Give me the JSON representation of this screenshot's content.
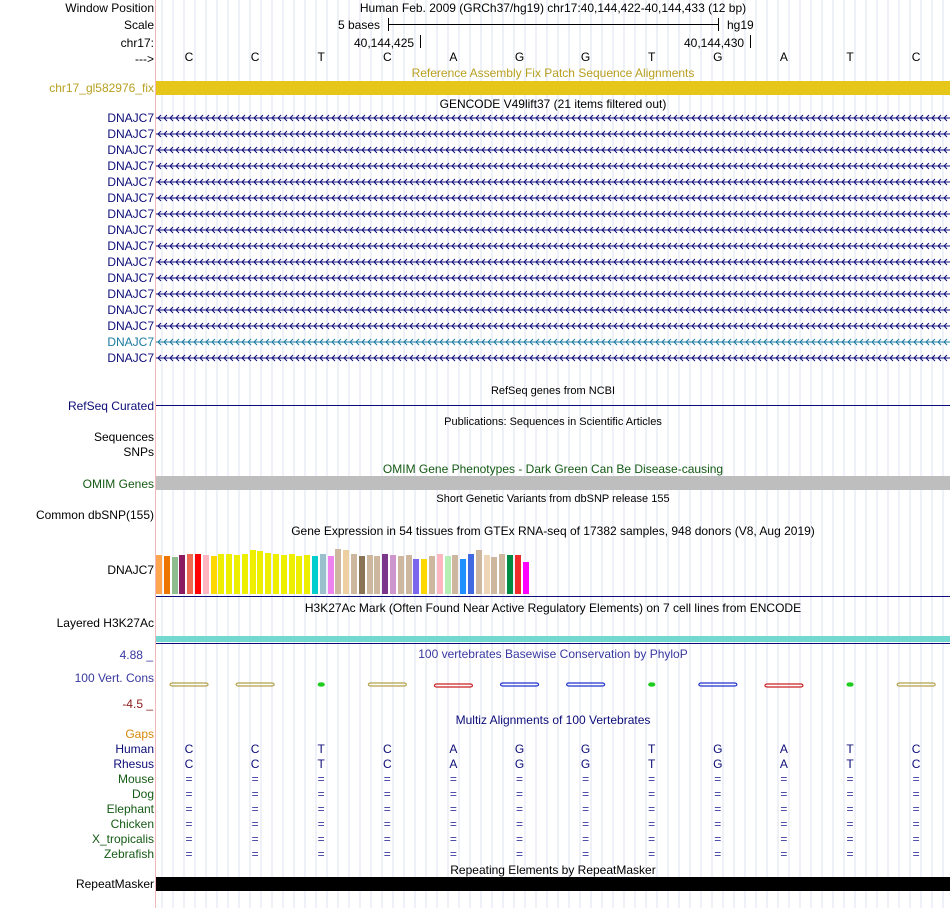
{
  "header": {
    "window_position_label": "Window Position",
    "position_text": "Human Feb. 2009 (GRCh37/hg19)   chr17:40,144,422-40,144,433 (12 bp)",
    "scale_label": "Scale",
    "scale_text": "5 bases",
    "assembly": "hg19",
    "chrom_label": "chr17:",
    "coord_left": "40,144,425",
    "coord_right": "40,144,430",
    "strand_label": "--->"
  },
  "bases": [
    "C",
    "C",
    "T",
    "C",
    "A",
    "G",
    "G",
    "T",
    "G",
    "A",
    "T",
    "C"
  ],
  "fix_track": {
    "title": "Reference Assembly Fix Patch Sequence Alignments",
    "label": "chr17_gl582976_fix",
    "color": "#e6c619"
  },
  "gencode": {
    "title": "GENCODE V49lift37 (21 items filtered out)",
    "genes": [
      "DNAJC7",
      "DNAJC7",
      "DNAJC7",
      "DNAJC7",
      "DNAJC7",
      "DNAJC7",
      "DNAJC7",
      "DNAJC7",
      "DNAJC7",
      "DNAJC7",
      "DNAJC7",
      "DNAJC7",
      "DNAJC7",
      "DNAJC7",
      "DNAJC7",
      "DNAJC7"
    ],
    "highlight_index": 14,
    "color": "#0c0c78",
    "highlight_color": "#1a7aa0"
  },
  "refseq": {
    "title": "RefSeq genes from NCBI",
    "label": "RefSeq Curated"
  },
  "publications": {
    "title": "Publications: Sequences in Scientific Articles",
    "labels": [
      "Sequences",
      "SNPs"
    ]
  },
  "omim": {
    "title": "OMIM Gene Phenotypes - Dark Green Can Be Disease-causing",
    "label": "OMIM Genes"
  },
  "dbsnp": {
    "title": "Short Genetic Variants from dbSNP release 155",
    "label": "Common dbSNP(155)"
  },
  "gtex": {
    "title": "Gene Expression in 54 tissues from GTEx RNA-seq of 17382 samples, 948 donors (V8, Aug 2019)",
    "label": "DNAJC7",
    "values": [
      0.7,
      0.68,
      0.66,
      0.7,
      0.72,
      0.72,
      0.7,
      0.68,
      0.72,
      0.72,
      0.7,
      0.72,
      0.78,
      0.76,
      0.74,
      0.72,
      0.7,
      0.72,
      0.68,
      0.7,
      0.68,
      0.72,
      0.68,
      0.8,
      0.78,
      0.72,
      0.68,
      0.7,
      0.68,
      0.72,
      0.7,
      0.68,
      0.7,
      0.62,
      0.62,
      0.68,
      0.72,
      0.68,
      0.7,
      0.62,
      0.72,
      0.78,
      0.7,
      0.66,
      0.72,
      0.7,
      0.7,
      0.7,
      0.68,
      0.7,
      0.68,
      0.68,
      0.7,
      0.58
    ],
    "colors": [
      "#ffa54f",
      "#ee7600",
      "#8fbc8f",
      "#8b1c62",
      "#ee6a50",
      "#ff0000",
      "#ffb6c1",
      "#ffd700",
      "#eeee00",
      "#eeee00",
      "#eeee00",
      "#eeee00",
      "#eeee00",
      "#eeee00",
      "#eeee00",
      "#eeee00",
      "#eeee00",
      "#eeee00",
      "#eeee00",
      "#eeee00",
      "#00cdcd",
      "#9ac0cd",
      "#ee82ee",
      "#cdb79e",
      "#eecfa1",
      "#cdb79e",
      "#8b7355",
      "#cdb79e",
      "#cdb79e",
      "#7a378b",
      "#cd96cd",
      "#cdb79e",
      "#cdb79e",
      "#7a67ee",
      "#ffd700",
      "#cdb79e",
      "#ffb6c1",
      "#b4eeb4",
      "#cdb79e",
      "#1e90ff",
      "#4169e1",
      "#cdb79e",
      "#eed5b7",
      "#cdb79e",
      "#cdb79e",
      "#008b45",
      "#ee2c2c",
      "#ff00ff",
      "#ff00ff",
      "#ff00ff",
      "#ff00ff",
      "#ff00ff",
      "#ff00ff",
      "#ff00ff"
    ]
  },
  "h3k27ac": {
    "title": "H3K27Ac Mark (Often Found Near Active Regulatory Elements) on 7 cell lines from ENCODE",
    "label": "Layered H3K27Ac",
    "color": "#73d9d0"
  },
  "phylop": {
    "title": "100 vertebrates Basewise Conservation by PhyloP",
    "label": "100 Vert. Cons",
    "max": "4.88 _",
    "min": "-4.5 _",
    "colors": [
      "#b5a24a",
      "#b5a24a",
      "#1fcc1f",
      "#b5a24a",
      "#cc2222",
      "#2233cc",
      "#2233cc",
      "#1fcc1f",
      "#2233cc",
      "#cc2222",
      "#1fcc1f",
      "#b5a24a"
    ]
  },
  "multiz": {
    "title": "Multiz Alignments of 100 Vertebrates",
    "gaps_label": "Gaps",
    "species": [
      {
        "name": "Human",
        "row": [
          "C",
          "C",
          "T",
          "C",
          "A",
          "G",
          "G",
          "T",
          "G",
          "A",
          "T",
          "C"
        ]
      },
      {
        "name": "Rhesus",
        "row": [
          "C",
          "C",
          "T",
          "C",
          "A",
          "G",
          "G",
          "T",
          "G",
          "A",
          "T",
          "C"
        ]
      },
      {
        "name": "Mouse",
        "row": [
          "=",
          "=",
          "=",
          "=",
          "=",
          "=",
          "=",
          "=",
          "=",
          "=",
          "=",
          "="
        ]
      },
      {
        "name": "Dog",
        "row": [
          "=",
          "=",
          "=",
          "=",
          "=",
          "=",
          "=",
          "=",
          "=",
          "=",
          "=",
          "="
        ]
      },
      {
        "name": "Elephant",
        "row": [
          "=",
          "=",
          "=",
          "=",
          "=",
          "=",
          "=",
          "=",
          "=",
          "=",
          "=",
          "="
        ]
      },
      {
        "name": "Chicken",
        "row": [
          "=",
          "=",
          "=",
          "=",
          "=",
          "=",
          "=",
          "=",
          "=",
          "=",
          "=",
          "="
        ]
      },
      {
        "name": "X_tropicalis",
        "row": [
          "=",
          "=",
          "=",
          "=",
          "=",
          "=",
          "=",
          "=",
          "=",
          "=",
          "=",
          "="
        ]
      },
      {
        "name": "Zebrafish",
        "row": [
          "=",
          "=",
          "=",
          "=",
          "=",
          "=",
          "=",
          "=",
          "=",
          "=",
          "=",
          "="
        ]
      }
    ]
  },
  "repeatmasker": {
    "title": "Repeating Elements by RepeatMasker",
    "label": "RepeatMasker"
  }
}
